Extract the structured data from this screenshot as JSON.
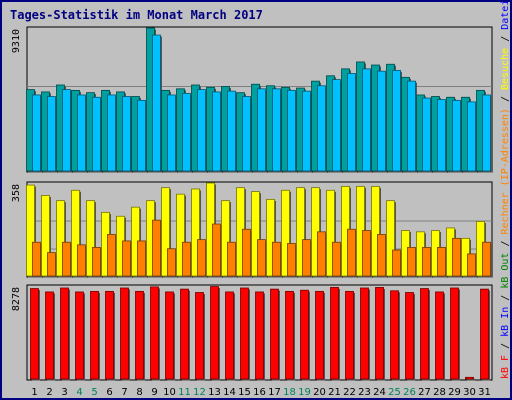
{
  "chart_data": {
    "type": "bar",
    "title": "Tages-Statistik im Monat March 2017",
    "categories": [
      "1",
      "2",
      "3",
      "4",
      "5",
      "6",
      "7",
      "8",
      "9",
      "10",
      "11",
      "12",
      "13",
      "14",
      "15",
      "16",
      "17",
      "18",
      "19",
      "20",
      "21",
      "22",
      "23",
      "24",
      "25",
      "26",
      "27",
      "28",
      "29",
      "30",
      "31"
    ],
    "weekend_color": "#00805c",
    "weekday_color": "#000000",
    "weekend_days": [
      "4",
      "5",
      "11",
      "12",
      "18",
      "19",
      "25",
      "26"
    ],
    "panels": [
      {
        "id": "hits",
        "max_label": "9310",
        "ymax": 9310,
        "grid": true,
        "series": [
          {
            "name": "Anfragen",
            "color": "#00a0a0",
            "values": [
              5300,
              5150,
              5600,
              5250,
              5100,
              5250,
              5150,
              4850,
              9310,
              5250,
              5350,
              5600,
              5450,
              5500,
              5100,
              5650,
              5550,
              5450,
              5400,
              5850,
              6200,
              6650,
              7100,
              6900,
              6950,
              6100,
              4950,
              4850,
              4800,
              4800,
              5250
            ]
          },
          {
            "name": "Dateien",
            "color": "#00c0ff",
            "values": [
              4950,
              4850,
              5300,
              4950,
              4800,
              4950,
              4850,
              4600,
              8850,
              4950,
              5050,
              5300,
              5150,
              5200,
              4850,
              5350,
              5350,
              5250,
              5200,
              5550,
              5950,
              6350,
              6650,
              6500,
              6550,
              5850,
              4750,
              4650,
              4600,
              4500,
              4950
            ]
          }
        ]
      },
      {
        "id": "visits",
        "max_label": "358",
        "ymax": 358,
        "grid": true,
        "series": [
          {
            "name": "Besuche",
            "color": "#ffff00",
            "values": [
              350,
              310,
              290,
              330,
              290,
              245,
              230,
              265,
              290,
              340,
              315,
              335,
              358,
              290,
              340,
              325,
              295,
              330,
              340,
              340,
              330,
              345,
              345,
              345,
              290,
              175,
              170,
              175,
              185,
              145,
              210
            ]
          },
          {
            "name": "IP-Adressen",
            "color": "#ff8000",
            "values": [
              130,
              90,
              130,
              120,
              110,
              160,
              135,
              135,
              215,
              105,
              130,
              140,
              200,
              130,
              180,
              140,
              130,
              125,
              140,
              170,
              130,
              180,
              175,
              160,
              100,
              110,
              110,
              110,
              145,
              85,
              130
            ]
          }
        ]
      },
      {
        "id": "kbytes",
        "max_label": "8278",
        "ymax": 8278,
        "grid": false,
        "series": [
          {
            "name": "kB F",
            "color": "#ff0000",
            "values": [
              8050,
              7750,
              8100,
              7750,
              7800,
              7800,
              8100,
              7800,
              8200,
              7750,
              8000,
              7700,
              8230,
              7750,
              8100,
              7750,
              8000,
              7800,
              7900,
              7800,
              8150,
              7800,
              8100,
              8150,
              7850,
              7700,
              8050,
              7750,
              8100,
              150,
              8000
            ]
          }
        ]
      }
    ],
    "side_legend": [
      {
        "text": "kB F",
        "color": "#ff0000",
        "after": " / "
      },
      {
        "text": "kB In",
        "color": "#0000ff",
        "after": " / "
      },
      {
        "text": "kB Out",
        "color": "#008000",
        "after": " / "
      },
      {
        "text": "Rechner (IP-Adressen)",
        "color": "#ff8000",
        "after": " / "
      },
      {
        "text": "Besuche",
        "color": "#ffff00",
        "after": " / "
      },
      {
        "text": "Dateien",
        "color": "#0000ff",
        "after": " / "
      },
      {
        "text": "Anfragen",
        "color": "#00a0a0",
        "after": ""
      }
    ]
  }
}
